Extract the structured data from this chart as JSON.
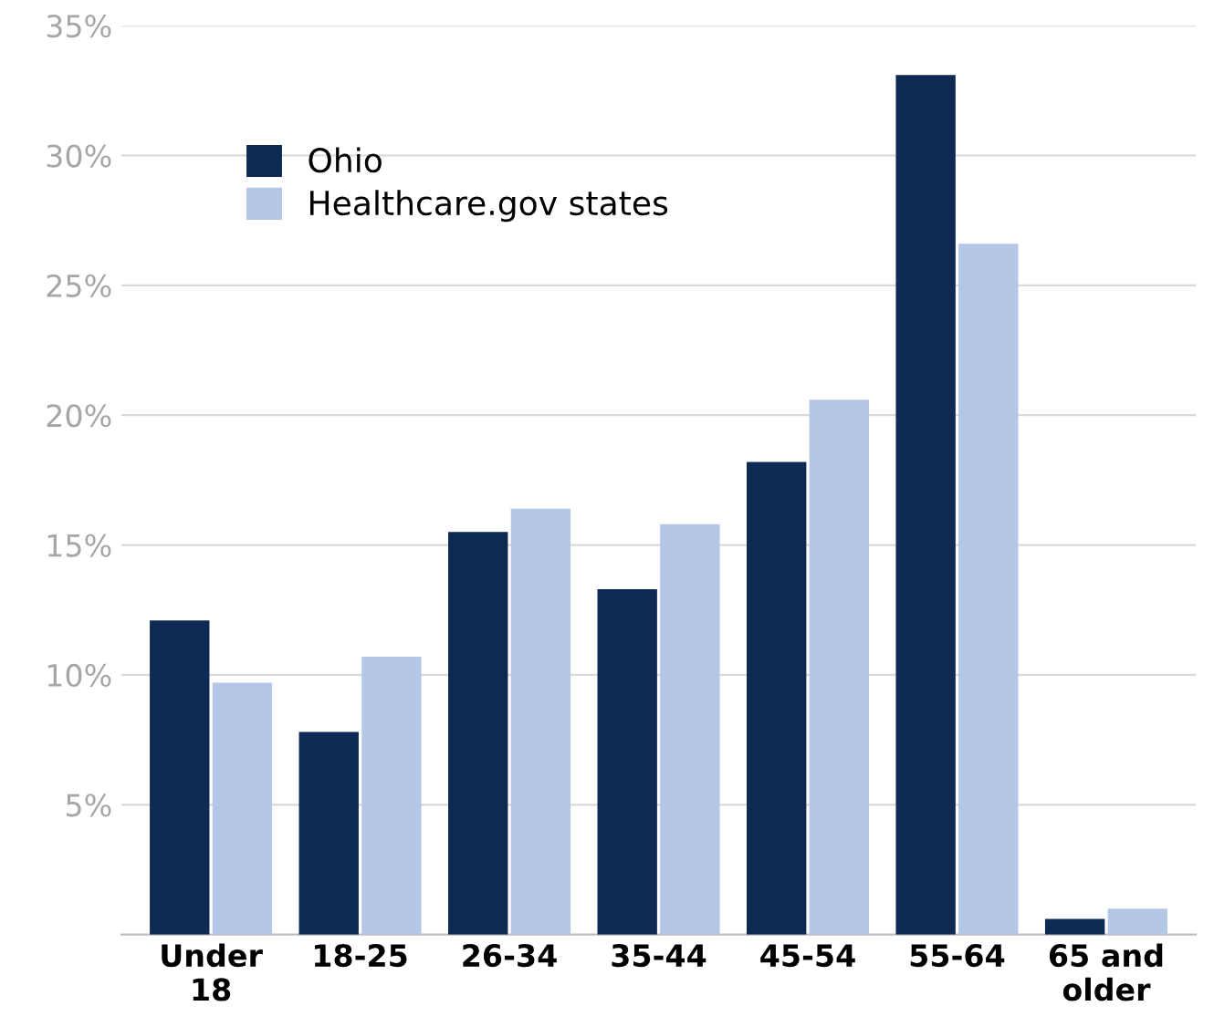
{
  "chart_data": {
    "type": "bar",
    "categories": [
      "Under\n18",
      "18-25",
      "26-34",
      "35-44",
      "45-54",
      "55-64",
      "65 and\nolder"
    ],
    "series": [
      {
        "name": "Ohio",
        "color": "#0f2a52",
        "values": [
          12.1,
          7.8,
          15.5,
          13.3,
          18.2,
          33.1,
          0.6
        ]
      },
      {
        "name": "Healthcare.gov states",
        "color": "#b4c7e7",
        "values": [
          9.7,
          10.7,
          16.4,
          15.8,
          20.6,
          26.6,
          1.0
        ]
      }
    ],
    "ylim": [
      0,
      35
    ],
    "yticks": [
      {
        "value": 5,
        "label": "5%"
      },
      {
        "value": 10,
        "label": "10%"
      },
      {
        "value": 15,
        "label": "15%"
      },
      {
        "value": 20,
        "label": "20%"
      },
      {
        "value": 25,
        "label": "25%"
      },
      {
        "value": 30,
        "label": "30%"
      },
      {
        "value": 35,
        "label": "35%"
      }
    ],
    "grid": "y",
    "legend": "top left"
  }
}
